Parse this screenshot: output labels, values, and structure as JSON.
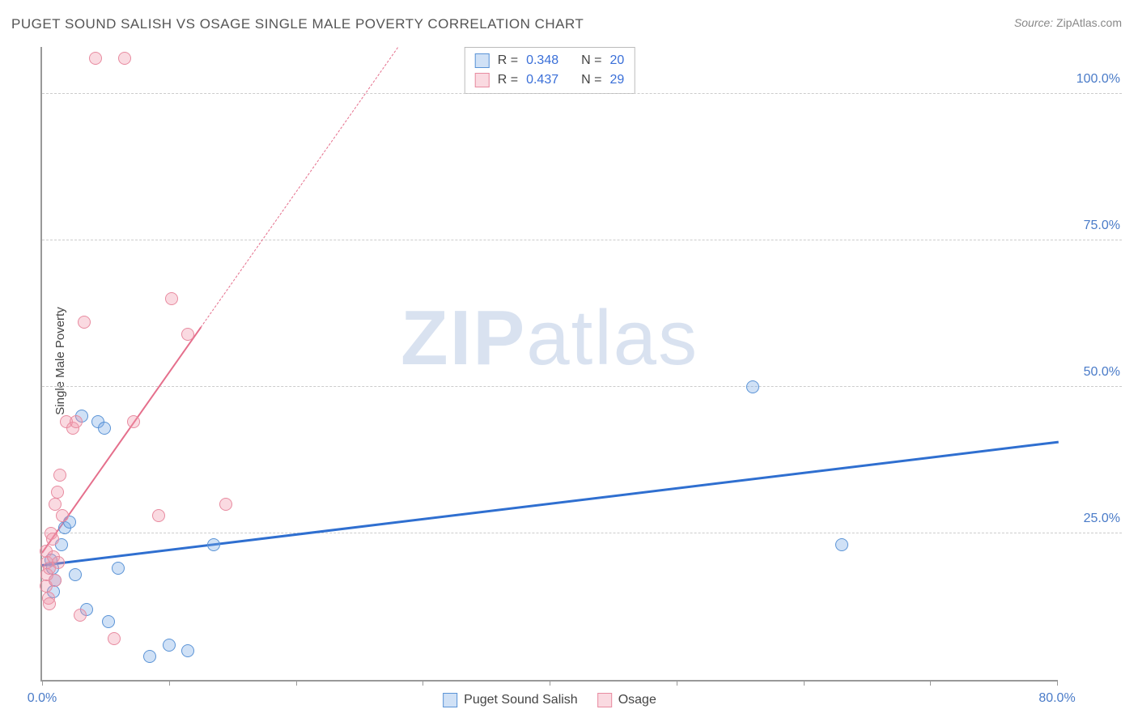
{
  "title": "PUGET SOUND SALISH VS OSAGE SINGLE MALE POVERTY CORRELATION CHART",
  "source": {
    "prefix": "Source:",
    "name": "ZipAtlas.com"
  },
  "y_axis_label": "Single Male Poverty",
  "watermark": {
    "bold": "ZIP",
    "rest": "atlas"
  },
  "chart": {
    "type": "scatter",
    "background_color": "#ffffff",
    "grid_color": "#cccccc",
    "axis_color": "#999999",
    "tick_label_color": "#4a7bc8",
    "xlim": [
      0,
      80
    ],
    "ylim": [
      0,
      108
    ],
    "x_ticks": [
      0,
      10,
      20,
      30,
      40,
      50,
      60,
      70,
      80
    ],
    "x_tick_labels": {
      "0": "0.0%",
      "80": "80.0%"
    },
    "y_gridlines": [
      25,
      50,
      75,
      100
    ],
    "y_tick_labels": {
      "25": "25.0%",
      "50": "50.0%",
      "75": "75.0%",
      "100": "100.0%"
    },
    "marker_radius": 8,
    "marker_border_width": 1.5,
    "label_fontsize": 16,
    "series": [
      {
        "key": "puget",
        "name": "Puget Sound Salish",
        "fill_color": "rgba(120,170,230,0.35)",
        "border_color": "#5a93d6",
        "r_value": "0.348",
        "n_value": "20",
        "points": [
          [
            0.7,
            20.5
          ],
          [
            0.8,
            19
          ],
          [
            1.0,
            17
          ],
          [
            1.5,
            23
          ],
          [
            0.9,
            15
          ],
          [
            1.8,
            26
          ],
          [
            2.2,
            27
          ],
          [
            2.6,
            18
          ],
          [
            3.1,
            45
          ],
          [
            3.5,
            12
          ],
          [
            4.4,
            44
          ],
          [
            4.9,
            43
          ],
          [
            5.2,
            10
          ],
          [
            6.0,
            19
          ],
          [
            8.5,
            4
          ],
          [
            10.0,
            6
          ],
          [
            11.5,
            5
          ],
          [
            13.5,
            23
          ],
          [
            56,
            50
          ],
          [
            63,
            23
          ]
        ],
        "trend": {
          "x1": 0,
          "y1": 20,
          "x2": 80,
          "y2": 41,
          "color": "#2f6fd0",
          "width": 3,
          "solid_until_x": 80
        }
      },
      {
        "key": "osage",
        "name": "Osage",
        "fill_color": "rgba(240,150,170,0.35)",
        "border_color": "#e88ba0",
        "r_value": "0.437",
        "n_value": "29",
        "points": [
          [
            0.3,
            22
          ],
          [
            0.4,
            20
          ],
          [
            0.4,
            18
          ],
          [
            0.3,
            16
          ],
          [
            0.5,
            14
          ],
          [
            0.6,
            19
          ],
          [
            0.7,
            25
          ],
          [
            0.9,
            21
          ],
          [
            1.0,
            30
          ],
          [
            1.0,
            17
          ],
          [
            1.2,
            32
          ],
          [
            1.4,
            35
          ],
          [
            1.6,
            28
          ],
          [
            1.9,
            44
          ],
          [
            2.4,
            43
          ],
          [
            2.7,
            44
          ],
          [
            3.0,
            11
          ],
          [
            3.3,
            61
          ],
          [
            4.2,
            106
          ],
          [
            5.7,
            7
          ],
          [
            6.5,
            106
          ],
          [
            7.2,
            44
          ],
          [
            9.2,
            28
          ],
          [
            10.2,
            65
          ],
          [
            11.5,
            59
          ],
          [
            14.5,
            30
          ],
          [
            0.6,
            13
          ],
          [
            0.8,
            24
          ],
          [
            1.3,
            20
          ]
        ],
        "trend": {
          "x1": 0,
          "y1": 22,
          "x2": 28,
          "y2": 108,
          "color": "#e56f8c",
          "width": 2.5,
          "solid_until_x": 12.5
        }
      }
    ]
  },
  "legend_top": {
    "r_label": "R =",
    "n_label": "N ="
  },
  "legend_bottom_order": [
    "puget",
    "osage"
  ]
}
